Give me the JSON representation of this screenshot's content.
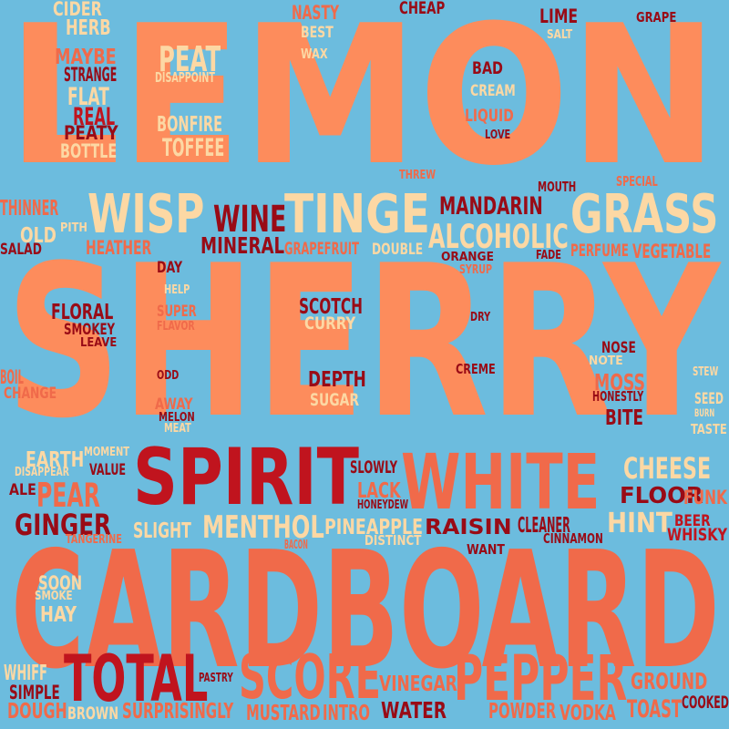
{
  "colors": {
    "background": "#6cbcde",
    "orange": "#fd8c5c",
    "coral": "#f06a4a",
    "cream": "#fcd8a4",
    "red": "#c0141e",
    "darkred": "#990b16"
  },
  "words": [
    {
      "text": "LEMON",
      "color": "orange"
    },
    {
      "text": "SHERRY",
      "color": "orange"
    },
    {
      "text": "CARDBOARD",
      "color": "coral"
    },
    {
      "text": "SPIRIT",
      "color": "red"
    },
    {
      "text": "WHITE",
      "color": "coral"
    },
    {
      "text": "WISP",
      "color": "cream"
    },
    {
      "text": "TINGE",
      "color": "cream"
    },
    {
      "text": "GRASS",
      "color": "cream"
    },
    {
      "text": "TOTAL",
      "color": "red"
    },
    {
      "text": "SCORE",
      "color": "coral"
    },
    {
      "text": "PEPPER",
      "color": "coral"
    },
    {
      "text": "ALCOHOLIC",
      "color": "cream"
    },
    {
      "text": "WINE",
      "color": "darkred"
    },
    {
      "text": "MANDARIN",
      "color": "darkred"
    },
    {
      "text": "MINERAL",
      "color": "darkred"
    },
    {
      "text": "CHEESE",
      "color": "cream"
    },
    {
      "text": "HINT",
      "color": "cream"
    },
    {
      "text": "MENTHOL",
      "color": "cream"
    },
    {
      "text": "PEAR",
      "color": "coral"
    },
    {
      "text": "GINGER",
      "color": "darkred"
    },
    {
      "text": "PEAT",
      "color": "cream"
    },
    {
      "text": "CIDER",
      "color": "cream"
    },
    {
      "text": "HERB",
      "color": "cream"
    },
    {
      "text": "NASTY",
      "color": "coral"
    },
    {
      "text": "BEST",
      "color": "cream"
    },
    {
      "text": "WAX",
      "color": "cream"
    },
    {
      "text": "CHEAP",
      "color": "darkred"
    },
    {
      "text": "LIME",
      "color": "darkred"
    },
    {
      "text": "GRAPE",
      "color": "darkred"
    },
    {
      "text": "SALT",
      "color": "cream"
    },
    {
      "text": "MAYBE",
      "color": "coral"
    },
    {
      "text": "STRANGE",
      "color": "darkred"
    },
    {
      "text": "DISAPPOINT",
      "color": "cream"
    },
    {
      "text": "BAD",
      "color": "darkred"
    },
    {
      "text": "CREAM",
      "color": "cream"
    },
    {
      "text": "FLAT",
      "color": "cream"
    },
    {
      "text": "REAL",
      "color": "red"
    },
    {
      "text": "PEATY",
      "color": "darkred"
    },
    {
      "text": "BOTTLE",
      "color": "cream"
    },
    {
      "text": "BONFIRE",
      "color": "cream"
    },
    {
      "text": "TOFFEE",
      "color": "cream"
    },
    {
      "text": "LIQUID",
      "color": "coral"
    },
    {
      "text": "LOVE",
      "color": "darkred"
    },
    {
      "text": "THREW",
      "color": "coral"
    },
    {
      "text": "MOUTH",
      "color": "darkred"
    },
    {
      "text": "SPECIAL",
      "color": "coral"
    },
    {
      "text": "THINNER",
      "color": "coral"
    },
    {
      "text": "PITH",
      "color": "cream"
    },
    {
      "text": "OLD",
      "color": "cream"
    },
    {
      "text": "HEATHER",
      "color": "coral"
    },
    {
      "text": "SALAD",
      "color": "darkred"
    },
    {
      "text": "GRAPEFRUIT",
      "color": "coral"
    },
    {
      "text": "DOUBLE",
      "color": "cream"
    },
    {
      "text": "ORANGE",
      "color": "darkred"
    },
    {
      "text": "SYRUP",
      "color": "coral"
    },
    {
      "text": "FADE",
      "color": "darkred"
    },
    {
      "text": "PERFUME",
      "color": "coral"
    },
    {
      "text": "VEGETABLE",
      "color": "coral"
    },
    {
      "text": "DAY",
      "color": "darkred"
    },
    {
      "text": "HELP",
      "color": "cream"
    },
    {
      "text": "FLORAL",
      "color": "darkred"
    },
    {
      "text": "SMOKEY",
      "color": "darkred"
    },
    {
      "text": "LEAVE",
      "color": "darkred"
    },
    {
      "text": "SUPER",
      "color": "coral"
    },
    {
      "text": "FLAVOR",
      "color": "coral"
    },
    {
      "text": "SCOTCH",
      "color": "darkred"
    },
    {
      "text": "CURRY",
      "color": "cream"
    },
    {
      "text": "DRY",
      "color": "darkred"
    },
    {
      "text": "NOSE",
      "color": "darkred"
    },
    {
      "text": "NOTE",
      "color": "cream"
    },
    {
      "text": "MOSS",
      "color": "coral"
    },
    {
      "text": "STEW",
      "color": "cream"
    },
    {
      "text": "CREME",
      "color": "darkred"
    },
    {
      "text": "BOIL",
      "color": "coral"
    },
    {
      "text": "CHANGE",
      "color": "coral"
    },
    {
      "text": "ODD",
      "color": "darkred"
    },
    {
      "text": "DEPTH",
      "color": "darkred"
    },
    {
      "text": "SUGAR",
      "color": "cream"
    },
    {
      "text": "HONESTLY",
      "color": "darkred"
    },
    {
      "text": "SEED",
      "color": "cream"
    },
    {
      "text": "BURN",
      "color": "cream"
    },
    {
      "text": "AWAY",
      "color": "coral"
    },
    {
      "text": "MELON",
      "color": "darkred"
    },
    {
      "text": "MEAT",
      "color": "cream"
    },
    {
      "text": "BITE",
      "color": "darkred"
    },
    {
      "text": "TASTE",
      "color": "cream"
    },
    {
      "text": "EARTH",
      "color": "cream"
    },
    {
      "text": "MOMENT",
      "color": "cream"
    },
    {
      "text": "VALUE",
      "color": "darkred"
    },
    {
      "text": "DISAPPEAR",
      "color": "cream"
    },
    {
      "text": "SLOWLY",
      "color": "darkred"
    },
    {
      "text": "LACK",
      "color": "coral"
    },
    {
      "text": "HONEYDEW",
      "color": "darkred"
    },
    {
      "text": "FLOOR",
      "color": "darkred"
    },
    {
      "text": "FUNK",
      "color": "coral"
    },
    {
      "text": "ALE",
      "color": "darkred"
    },
    {
      "text": "BEER",
      "color": "red"
    },
    {
      "text": "WHISKY",
      "color": "red"
    },
    {
      "text": "SLIGHT",
      "color": "cream"
    },
    {
      "text": "PINEAPPLE",
      "color": "cream"
    },
    {
      "text": "RAISIN",
      "color": "darkred"
    },
    {
      "text": "CLEANER",
      "color": "darkred"
    },
    {
      "text": "TANGERINE",
      "color": "coral"
    },
    {
      "text": "BACON",
      "color": "coral"
    },
    {
      "text": "DISTINCT",
      "color": "cream"
    },
    {
      "text": "CINNAMON",
      "color": "darkred"
    },
    {
      "text": "WANT",
      "color": "darkred"
    },
    {
      "text": "SOON",
      "color": "cream"
    },
    {
      "text": "SMOKE",
      "color": "cream"
    },
    {
      "text": "HAY",
      "color": "cream"
    },
    {
      "text": "WHIFF",
      "color": "cream"
    },
    {
      "text": "SIMPLE",
      "color": "darkred"
    },
    {
      "text": "PASTRY",
      "color": "darkred"
    },
    {
      "text": "VINEGAR",
      "color": "coral"
    },
    {
      "text": "GROUND",
      "color": "coral"
    },
    {
      "text": "DOUGH",
      "color": "coral"
    },
    {
      "text": "BROWN",
      "color": "cream"
    },
    {
      "text": "SURPRISINGLY",
      "color": "coral"
    },
    {
      "text": "MUSTARD",
      "color": "coral"
    },
    {
      "text": "INTRO",
      "color": "coral"
    },
    {
      "text": "WATER",
      "color": "darkred"
    },
    {
      "text": "POWDER",
      "color": "coral"
    },
    {
      "text": "VODKA",
      "color": "coral"
    },
    {
      "text": "TOAST",
      "color": "coral"
    },
    {
      "text": "COOKED",
      "color": "darkred"
    }
  ]
}
